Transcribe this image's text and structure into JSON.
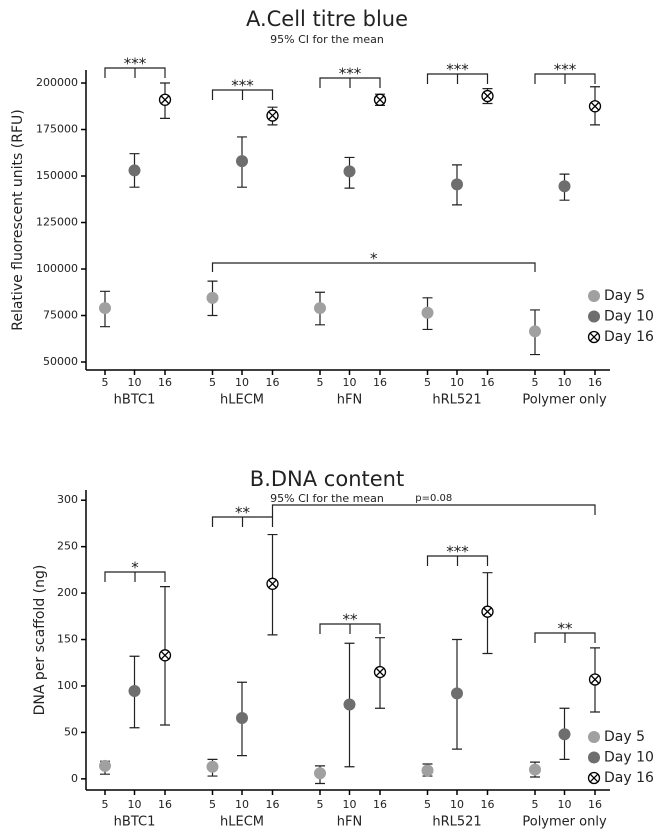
{
  "chart_data": [
    {
      "type": "errorbar",
      "title": "A.Cell titre blue",
      "subtitle": "95% CI for the mean",
      "ylabel": "Relative fluorescent units (RFU)",
      "groups": [
        "hBTC1",
        "hLECM",
        "hFN",
        "hRL521",
        "Polymer only"
      ],
      "subticks": [
        "5",
        "10",
        "16"
      ],
      "ylim": [
        45700,
        207000
      ],
      "yticks": [
        50000,
        75000,
        100000,
        125000,
        150000,
        175000,
        200000
      ],
      "legend": "right",
      "series": [
        {
          "name": "Day 5",
          "color": "#a0a0a0",
          "values": [
            79000,
            84500,
            79000,
            76500,
            66500
          ],
          "ci_low": [
            69000,
            75000,
            70000,
            67500,
            54000
          ],
          "ci_high": [
            88000,
            93500,
            87500,
            84500,
            78000
          ]
        },
        {
          "name": "Day 10",
          "color": "#6e6e6e",
          "values": [
            153000,
            158000,
            152500,
            145500,
            144500
          ],
          "ci_low": [
            144000,
            144000,
            143500,
            134500,
            137000
          ],
          "ci_high": [
            162000,
            171000,
            160000,
            156000,
            151000
          ]
        },
        {
          "name": "Day 16",
          "color": "#ffffff",
          "values": [
            191000,
            182500,
            191000,
            193000,
            187500
          ],
          "ci_low": [
            181000,
            177500,
            188000,
            189000,
            177500
          ],
          "ci_high": [
            200000,
            187000,
            194000,
            197000,
            198000
          ]
        }
      ],
      "annotations": [
        {
          "text": "***"
        },
        {
          "text": "***"
        },
        {
          "text": "***"
        },
        {
          "text": "***"
        },
        {
          "text": "***"
        },
        {
          "text": "*"
        }
      ]
    },
    {
      "type": "errorbar",
      "title": "B.DNA content",
      "subtitle": "95% CI for the mean",
      "ylabel": "DNA per scaffold (ng)",
      "groups": [
        "hBTC1",
        "hLECM",
        "hFN",
        "hRL521",
        "Polymer only"
      ],
      "subticks": [
        "5",
        "10",
        "16"
      ],
      "ylim": [
        -12,
        311
      ],
      "yticks": [
        0,
        50,
        100,
        150,
        200,
        250,
        300
      ],
      "legend": "right",
      "series": [
        {
          "name": "Day 5",
          "color": "#a0a0a0",
          "values": [
            14,
            13,
            6,
            9,
            10
          ],
          "ci_low": [
            5,
            3,
            -5,
            3,
            2
          ],
          "ci_high": [
            19,
            21,
            14,
            16,
            18
          ]
        },
        {
          "name": "Day 10",
          "color": "#6e6e6e",
          "values": [
            94.6,
            65.5,
            80,
            92,
            48
          ],
          "ci_low": [
            55,
            25,
            13,
            32,
            21
          ],
          "ci_high": [
            132,
            104,
            146,
            150,
            76
          ]
        },
        {
          "name": "Day 16",
          "color": "#ffffff",
          "values": [
            133,
            210,
            115,
            180,
            107
          ],
          "ci_low": [
            58,
            155,
            76,
            135,
            72
          ],
          "ci_high": [
            207,
            263,
            152,
            222,
            141
          ]
        }
      ],
      "annotations": [
        {
          "text": "*"
        },
        {
          "text": "**"
        },
        {
          "text": "**"
        },
        {
          "text": "***"
        },
        {
          "text": "**"
        },
        {
          "text": "p=0.08"
        }
      ]
    }
  ]
}
